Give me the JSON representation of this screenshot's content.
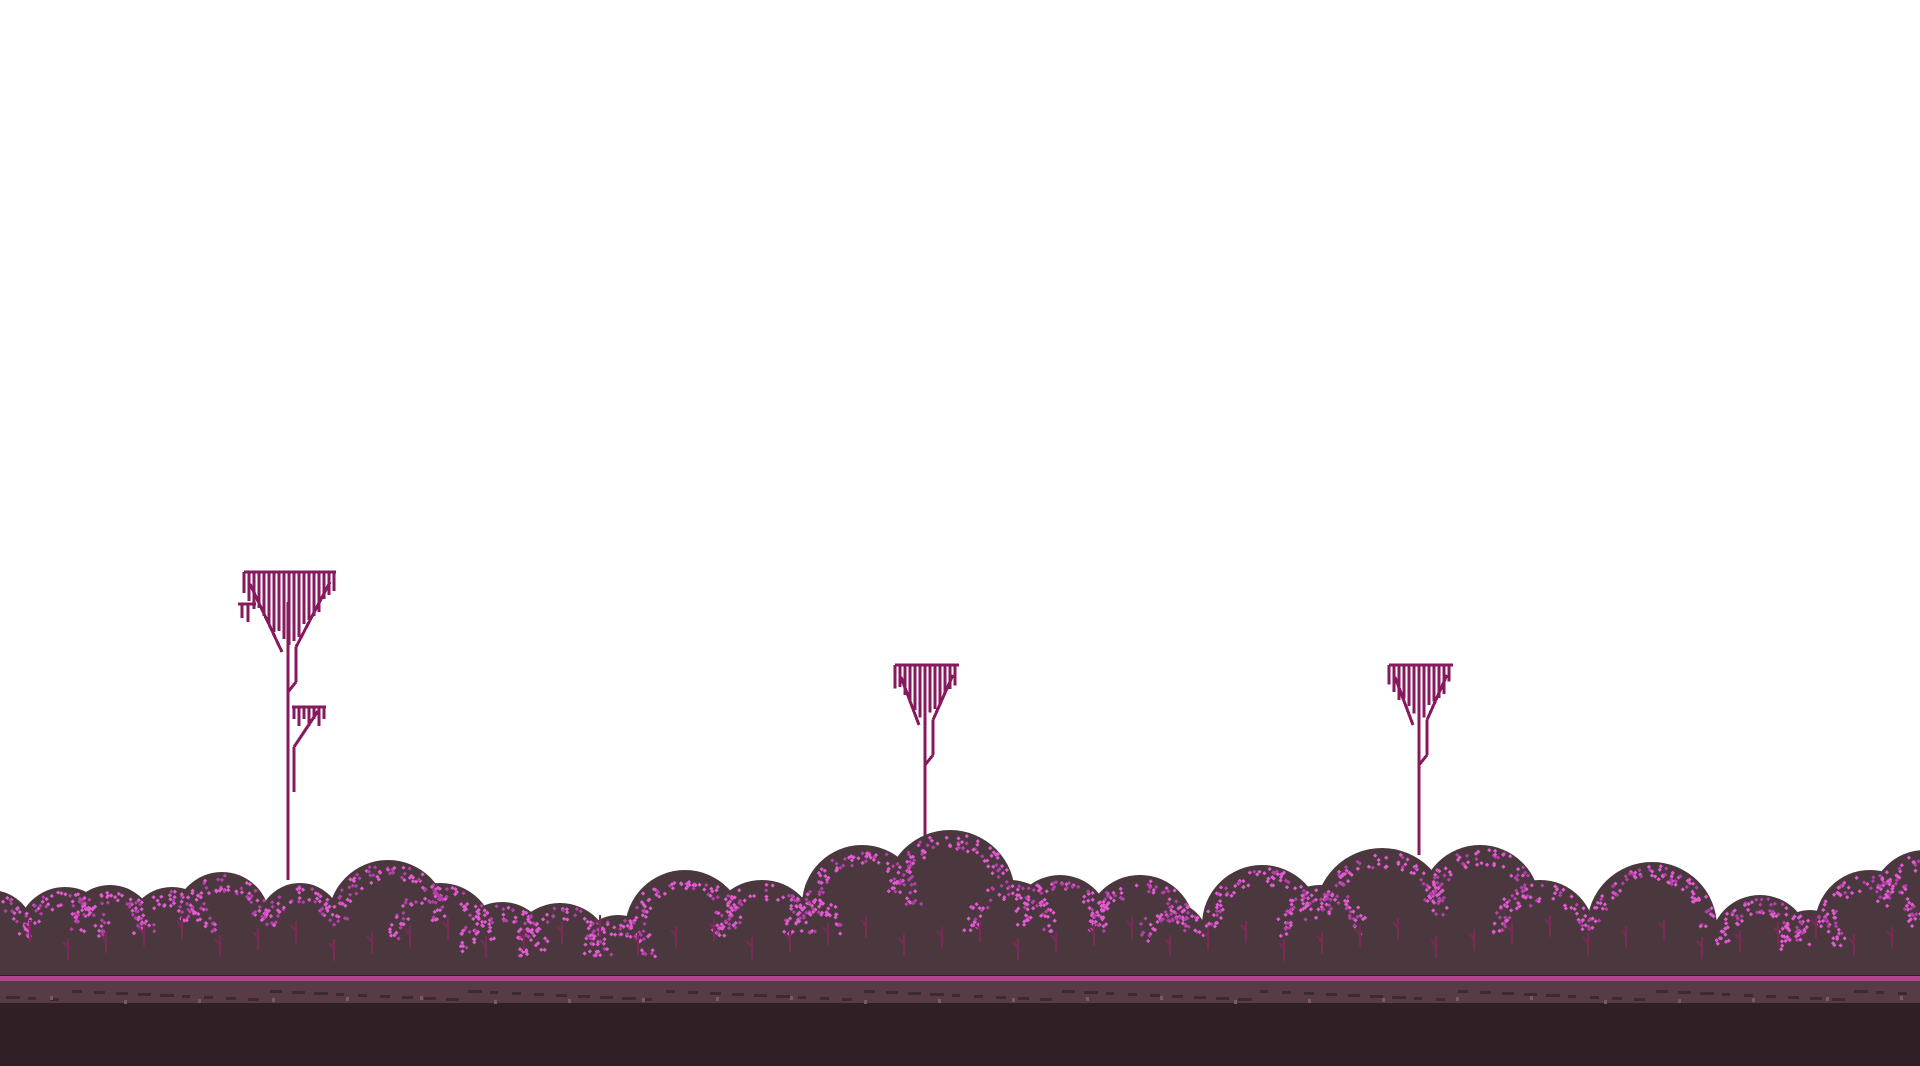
{
  "scene": {
    "colors": {
      "sky": "#ffffff",
      "bush_fill": "#4a383e",
      "bush_highlight": "#e35ad2",
      "bush_highlight_alt": "#b43fa8",
      "trunk": "#871a5f",
      "ground_edge": "#b1468e",
      "ground_top": "#573c46",
      "soil": "#301f25"
    },
    "icons": {
      "tree": "tall-dead-tree",
      "bush": "pink-speckled-shrub",
      "ground": "forest-floor"
    }
  }
}
